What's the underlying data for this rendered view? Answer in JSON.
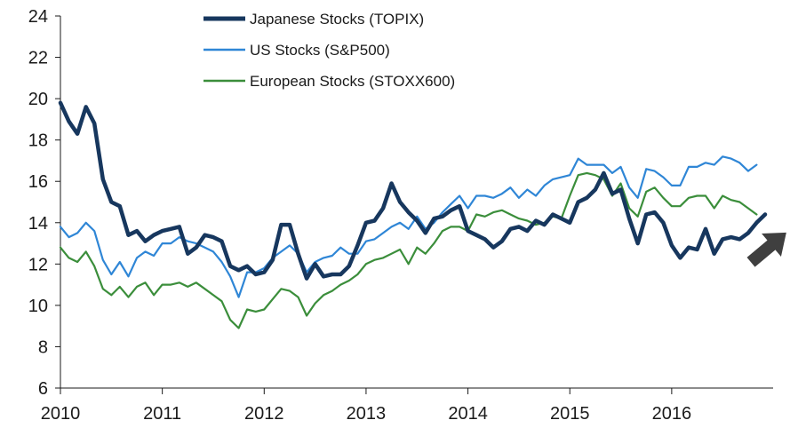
{
  "chart_data": {
    "type": "line",
    "title": "",
    "xlabel": "",
    "ylabel": "",
    "xlim": [
      2010,
      2016.917
    ],
    "ylim": [
      6,
      24
    ],
    "yticks": [
      6,
      8,
      10,
      12,
      14,
      16,
      18,
      20,
      22,
      24
    ],
    "xticks": [
      2010,
      2011,
      2012,
      2013,
      2014,
      2015,
      2016
    ],
    "xtick_labels": [
      "2010",
      "2011",
      "2012",
      "2013",
      "2014",
      "2015",
      "2016"
    ],
    "grid": false,
    "legend_position": "top-center",
    "annotations": [
      {
        "type": "arrow",
        "direction": "up-right",
        "color": "#3f3f3f"
      }
    ],
    "series": [
      {
        "name": "Japanese Stocks (TOPIX)",
        "color": "#17375e",
        "points": [
          [
            2010.0,
            19.8
          ],
          [
            2010.083,
            18.9
          ],
          [
            2010.167,
            18.3
          ],
          [
            2010.25,
            19.6
          ],
          [
            2010.333,
            18.8
          ],
          [
            2010.417,
            16.1
          ],
          [
            2010.5,
            15.0
          ],
          [
            2010.583,
            14.8
          ],
          [
            2010.667,
            13.4
          ],
          [
            2010.75,
            13.6
          ],
          [
            2010.833,
            13.1
          ],
          [
            2010.917,
            13.4
          ],
          [
            2011.0,
            13.6
          ],
          [
            2011.083,
            13.7
          ],
          [
            2011.167,
            13.8
          ],
          [
            2011.25,
            12.5
          ],
          [
            2011.333,
            12.8
          ],
          [
            2011.417,
            13.4
          ],
          [
            2011.5,
            13.3
          ],
          [
            2011.583,
            13.1
          ],
          [
            2011.667,
            11.9
          ],
          [
            2011.75,
            11.7
          ],
          [
            2011.833,
            11.9
          ],
          [
            2011.917,
            11.5
          ],
          [
            2012.0,
            11.6
          ],
          [
            2012.083,
            12.2
          ],
          [
            2012.167,
            13.9
          ],
          [
            2012.25,
            13.9
          ],
          [
            2012.333,
            12.5
          ],
          [
            2012.417,
            11.3
          ],
          [
            2012.5,
            12.0
          ],
          [
            2012.583,
            11.4
          ],
          [
            2012.667,
            11.5
          ],
          [
            2012.75,
            11.5
          ],
          [
            2012.833,
            11.9
          ],
          [
            2012.917,
            12.9
          ],
          [
            2013.0,
            14.0
          ],
          [
            2013.083,
            14.1
          ],
          [
            2013.167,
            14.7
          ],
          [
            2013.25,
            15.9
          ],
          [
            2013.333,
            15.0
          ],
          [
            2013.417,
            14.5
          ],
          [
            2013.5,
            14.1
          ],
          [
            2013.583,
            13.5
          ],
          [
            2013.667,
            14.2
          ],
          [
            2013.75,
            14.3
          ],
          [
            2013.833,
            14.6
          ],
          [
            2013.917,
            14.8
          ],
          [
            2014.0,
            13.6
          ],
          [
            2014.083,
            13.4
          ],
          [
            2014.167,
            13.2
          ],
          [
            2014.25,
            12.8
          ],
          [
            2014.333,
            13.1
          ],
          [
            2014.417,
            13.7
          ],
          [
            2014.5,
            13.8
          ],
          [
            2014.583,
            13.6
          ],
          [
            2014.667,
            14.1
          ],
          [
            2014.75,
            13.9
          ],
          [
            2014.833,
            14.4
          ],
          [
            2014.917,
            14.2
          ],
          [
            2015.0,
            14.0
          ],
          [
            2015.083,
            15.0
          ],
          [
            2015.167,
            15.2
          ],
          [
            2015.25,
            15.6
          ],
          [
            2015.333,
            16.4
          ],
          [
            2015.417,
            15.4
          ],
          [
            2015.5,
            15.6
          ],
          [
            2015.583,
            14.2
          ],
          [
            2015.667,
            13.0
          ],
          [
            2015.75,
            14.4
          ],
          [
            2015.833,
            14.5
          ],
          [
            2015.917,
            14.0
          ],
          [
            2016.0,
            12.9
          ],
          [
            2016.083,
            12.3
          ],
          [
            2016.167,
            12.8
          ],
          [
            2016.25,
            12.7
          ],
          [
            2016.333,
            13.7
          ],
          [
            2016.417,
            12.5
          ],
          [
            2016.5,
            13.2
          ],
          [
            2016.583,
            13.3
          ],
          [
            2016.667,
            13.2
          ],
          [
            2016.75,
            13.5
          ],
          [
            2016.833,
            14.0
          ],
          [
            2016.917,
            14.4
          ]
        ]
      },
      {
        "name": "US Stocks (S&P500)",
        "color": "#2f86d6",
        "points": [
          [
            2010.0,
            13.8
          ],
          [
            2010.083,
            13.3
          ],
          [
            2010.167,
            13.5
          ],
          [
            2010.25,
            14.0
          ],
          [
            2010.333,
            13.6
          ],
          [
            2010.417,
            12.2
          ],
          [
            2010.5,
            11.5
          ],
          [
            2010.583,
            12.1
          ],
          [
            2010.667,
            11.4
          ],
          [
            2010.75,
            12.3
          ],
          [
            2010.833,
            12.6
          ],
          [
            2010.917,
            12.4
          ],
          [
            2011.0,
            13.0
          ],
          [
            2011.083,
            13.0
          ],
          [
            2011.167,
            13.3
          ],
          [
            2011.25,
            13.1
          ],
          [
            2011.333,
            13.0
          ],
          [
            2011.417,
            12.8
          ],
          [
            2011.5,
            12.6
          ],
          [
            2011.583,
            12.1
          ],
          [
            2011.667,
            11.4
          ],
          [
            2011.75,
            10.4
          ],
          [
            2011.833,
            11.6
          ],
          [
            2011.917,
            11.6
          ],
          [
            2012.0,
            11.8
          ],
          [
            2012.083,
            12.3
          ],
          [
            2012.167,
            12.6
          ],
          [
            2012.25,
            12.9
          ],
          [
            2012.333,
            12.5
          ],
          [
            2012.417,
            11.6
          ],
          [
            2012.5,
            12.1
          ],
          [
            2012.583,
            12.3
          ],
          [
            2012.667,
            12.4
          ],
          [
            2012.75,
            12.8
          ],
          [
            2012.833,
            12.5
          ],
          [
            2012.917,
            12.5
          ],
          [
            2013.0,
            13.1
          ],
          [
            2013.083,
            13.2
          ],
          [
            2013.167,
            13.5
          ],
          [
            2013.25,
            13.8
          ],
          [
            2013.333,
            14.0
          ],
          [
            2013.417,
            13.7
          ],
          [
            2013.5,
            14.3
          ],
          [
            2013.583,
            13.7
          ],
          [
            2013.667,
            14.0
          ],
          [
            2013.75,
            14.5
          ],
          [
            2013.833,
            14.9
          ],
          [
            2013.917,
            15.3
          ],
          [
            2014.0,
            14.7
          ],
          [
            2014.083,
            15.3
          ],
          [
            2014.167,
            15.3
          ],
          [
            2014.25,
            15.2
          ],
          [
            2014.333,
            15.4
          ],
          [
            2014.417,
            15.7
          ],
          [
            2014.5,
            15.2
          ],
          [
            2014.583,
            15.6
          ],
          [
            2014.667,
            15.3
          ],
          [
            2014.75,
            15.8
          ],
          [
            2014.833,
            16.1
          ],
          [
            2014.917,
            16.2
          ],
          [
            2015.0,
            16.3
          ],
          [
            2015.083,
            17.1
          ],
          [
            2015.167,
            16.8
          ],
          [
            2015.25,
            16.8
          ],
          [
            2015.333,
            16.8
          ],
          [
            2015.417,
            16.4
          ],
          [
            2015.5,
            16.7
          ],
          [
            2015.583,
            15.7
          ],
          [
            2015.667,
            15.2
          ],
          [
            2015.75,
            16.6
          ],
          [
            2015.833,
            16.5
          ],
          [
            2015.917,
            16.2
          ],
          [
            2016.0,
            15.8
          ],
          [
            2016.083,
            15.8
          ],
          [
            2016.167,
            16.7
          ],
          [
            2016.25,
            16.7
          ],
          [
            2016.333,
            16.9
          ],
          [
            2016.417,
            16.8
          ],
          [
            2016.5,
            17.2
          ],
          [
            2016.583,
            17.1
          ],
          [
            2016.667,
            16.9
          ],
          [
            2016.75,
            16.5
          ],
          [
            2016.833,
            16.8
          ]
        ]
      },
      {
        "name": "European Stocks (STOXX600)",
        "color": "#3b8e3b",
        "points": [
          [
            2010.0,
            12.8
          ],
          [
            2010.083,
            12.3
          ],
          [
            2010.167,
            12.1
          ],
          [
            2010.25,
            12.6
          ],
          [
            2010.333,
            11.9
          ],
          [
            2010.417,
            10.8
          ],
          [
            2010.5,
            10.5
          ],
          [
            2010.583,
            10.9
          ],
          [
            2010.667,
            10.4
          ],
          [
            2010.75,
            10.9
          ],
          [
            2010.833,
            11.1
          ],
          [
            2010.917,
            10.5
          ],
          [
            2011.0,
            11.0
          ],
          [
            2011.083,
            11.0
          ],
          [
            2011.167,
            11.1
          ],
          [
            2011.25,
            10.9
          ],
          [
            2011.333,
            11.1
          ],
          [
            2011.417,
            10.8
          ],
          [
            2011.5,
            10.5
          ],
          [
            2011.583,
            10.2
          ],
          [
            2011.667,
            9.3
          ],
          [
            2011.75,
            8.9
          ],
          [
            2011.833,
            9.8
          ],
          [
            2011.917,
            9.7
          ],
          [
            2012.0,
            9.8
          ],
          [
            2012.083,
            10.3
          ],
          [
            2012.167,
            10.8
          ],
          [
            2012.25,
            10.7
          ],
          [
            2012.333,
            10.4
          ],
          [
            2012.417,
            9.5
          ],
          [
            2012.5,
            10.1
          ],
          [
            2012.583,
            10.5
          ],
          [
            2012.667,
            10.7
          ],
          [
            2012.75,
            11.0
          ],
          [
            2012.833,
            11.2
          ],
          [
            2012.917,
            11.5
          ],
          [
            2013.0,
            12.0
          ],
          [
            2013.083,
            12.2
          ],
          [
            2013.167,
            12.3
          ],
          [
            2013.25,
            12.5
          ],
          [
            2013.333,
            12.7
          ],
          [
            2013.417,
            12.0
          ],
          [
            2013.5,
            12.8
          ],
          [
            2013.583,
            12.5
          ],
          [
            2013.667,
            13.0
          ],
          [
            2013.75,
            13.6
          ],
          [
            2013.833,
            13.8
          ],
          [
            2013.917,
            13.8
          ],
          [
            2014.0,
            13.6
          ],
          [
            2014.083,
            14.4
          ],
          [
            2014.167,
            14.3
          ],
          [
            2014.25,
            14.5
          ],
          [
            2014.333,
            14.6
          ],
          [
            2014.417,
            14.4
          ],
          [
            2014.5,
            14.2
          ],
          [
            2014.583,
            14.1
          ],
          [
            2014.667,
            13.9
          ],
          [
            2014.75,
            14.0
          ],
          [
            2014.833,
            14.3
          ],
          [
            2014.917,
            14.2
          ],
          [
            2015.0,
            15.3
          ],
          [
            2015.083,
            16.3
          ],
          [
            2015.167,
            16.4
          ],
          [
            2015.25,
            16.3
          ],
          [
            2015.333,
            16.1
          ],
          [
            2015.417,
            15.3
          ],
          [
            2015.5,
            15.9
          ],
          [
            2015.583,
            14.7
          ],
          [
            2015.667,
            14.3
          ],
          [
            2015.75,
            15.5
          ],
          [
            2015.833,
            15.7
          ],
          [
            2015.917,
            15.2
          ],
          [
            2016.0,
            14.8
          ],
          [
            2016.083,
            14.8
          ],
          [
            2016.167,
            15.2
          ],
          [
            2016.25,
            15.3
          ],
          [
            2016.333,
            15.3
          ],
          [
            2016.417,
            14.7
          ],
          [
            2016.5,
            15.3
          ],
          [
            2016.583,
            15.1
          ],
          [
            2016.667,
            15.0
          ],
          [
            2016.75,
            14.7
          ],
          [
            2016.833,
            14.4
          ]
        ]
      }
    ]
  }
}
